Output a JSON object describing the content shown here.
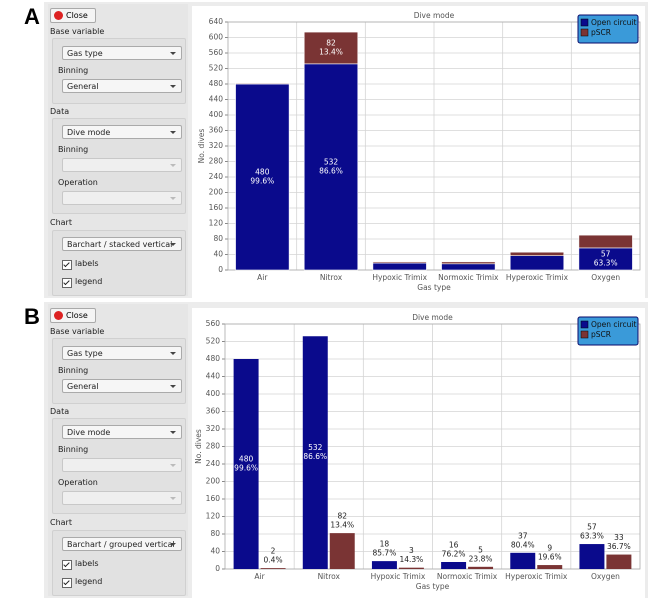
{
  "panels": [
    {
      "label": "A",
      "close": "Close",
      "sidebar": {
        "base_variable": "Base variable",
        "base_select": "Gas type",
        "binning": "Binning",
        "binning_select": "General",
        "data": "Data",
        "data_select": "Dive mode",
        "data_binning": "Binning",
        "operation": "Operation",
        "chart": "Chart",
        "chart_select": "Barchart / stacked vertical",
        "labels": "labels",
        "legend": "legend"
      }
    },
    {
      "label": "B",
      "close": "Close",
      "sidebar": {
        "base_variable": "Base variable",
        "base_select": "Gas type",
        "binning": "Binning",
        "binning_select": "General",
        "data": "Data",
        "data_select": "Dive mode",
        "data_binning": "Binning",
        "operation": "Operation",
        "chart": "Chart",
        "chart_select": "Barchart / grouped vertical",
        "labels": "labels",
        "legend": "legend"
      }
    }
  ],
  "chart_data": [
    {
      "type": "bar",
      "stacked": true,
      "title": "Dive mode",
      "x_label": "Gas type",
      "y_label": "No. dives",
      "categories": [
        "Air",
        "Nitrox",
        "Hypoxic Trimix",
        "Normoxic Trimix",
        "Hyperoxic Trimix",
        "Oxygen"
      ],
      "series": [
        {
          "name": "Open circuit",
          "color": "#0a0a8c",
          "values": [
            480,
            532,
            18,
            16,
            37,
            57
          ],
          "percent_labels": [
            "99.6%",
            "86.6%",
            null,
            null,
            null,
            "63.3%"
          ]
        },
        {
          "name": "pSCR",
          "color": "#7a3434",
          "values": [
            2,
            82,
            3,
            5,
            9,
            33
          ],
          "percent_labels": [
            null,
            "13.4%",
            null,
            null,
            null,
            null
          ]
        }
      ],
      "ylim": [
        0,
        640
      ],
      "yticks": [
        0,
        40,
        80,
        120,
        160,
        200,
        240,
        280,
        320,
        360,
        400,
        440,
        480,
        520,
        560,
        600,
        640
      ],
      "grid": true,
      "legend": "upper right"
    },
    {
      "type": "bar",
      "stacked": false,
      "title": "Dive mode",
      "x_label": "Gas type",
      "y_label": "No. dives",
      "categories": [
        "Air",
        "Nitrox",
        "Hypoxic Trimix",
        "Normoxic Trimix",
        "Hyperoxic Trimix",
        "Oxygen"
      ],
      "series": [
        {
          "name": "Open circuit",
          "color": "#0a0a8c",
          "values": [
            480,
            532,
            18,
            16,
            37,
            57
          ],
          "percent_labels": [
            "99.6%",
            "86.6%",
            "85.7%",
            "76.2%",
            "80.4%",
            "63.3%"
          ]
        },
        {
          "name": "pSCR",
          "color": "#7a3434",
          "values": [
            2,
            82,
            3,
            5,
            9,
            33
          ],
          "percent_labels": [
            "0.4%",
            "13.4%",
            "14.3%",
            "23.8%",
            "19.6%",
            "36.7%"
          ]
        }
      ],
      "ylim": [
        0,
        560
      ],
      "yticks": [
        0,
        40,
        80,
        120,
        160,
        200,
        240,
        280,
        320,
        360,
        400,
        440,
        480,
        520,
        560
      ],
      "grid": true,
      "legend": "upper right"
    }
  ]
}
